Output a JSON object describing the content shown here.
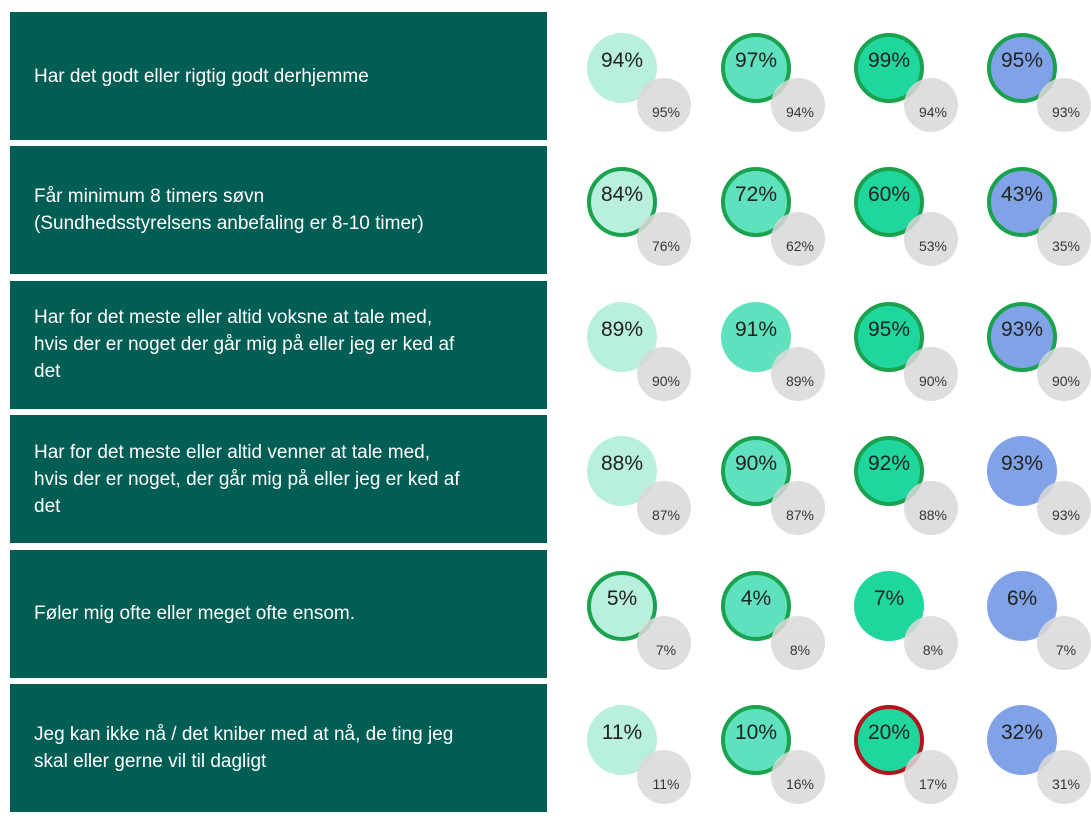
{
  "column_colors": [
    "#b9efdd",
    "#60e1bd",
    "#1fd69f",
    "#80a3e7"
  ],
  "comparison_color": "#d9d9d9",
  "outline_colors": {
    "green": "#1ba24f",
    "red": "#b3151d"
  },
  "panel_color": "#005e55",
  "rows": [
    {
      "lines": [
        "Har det godt eller rigtig godt derhjemme"
      ],
      "cells": [
        {
          "value": "94%",
          "comparison": "95%"
        },
        {
          "value": "97%",
          "comparison": "94%",
          "outline": "green"
        },
        {
          "value": "99%",
          "comparison": "94%",
          "outline": "green"
        },
        {
          "value": "95%",
          "comparison": "93%",
          "outline": "green"
        }
      ]
    },
    {
      "lines": [
        "Får minimum 8 timers søvn",
        "(Sundhedsstyrelsens anbefaling er 8-10 timer)"
      ],
      "cells": [
        {
          "value": "84%",
          "comparison": "76%",
          "outline": "green"
        },
        {
          "value": "72%",
          "comparison": "62%",
          "outline": "green"
        },
        {
          "value": "60%",
          "comparison": "53%",
          "outline": "green"
        },
        {
          "value": "43%",
          "comparison": "35%",
          "outline": "green"
        }
      ]
    },
    {
      "lines": [
        "Har for det meste eller altid voksne at tale med,",
        "hvis der er noget der går mig på eller jeg er ked af",
        "det"
      ],
      "cells": [
        {
          "value": "89%",
          "comparison": "90%"
        },
        {
          "value": "91%",
          "comparison": "89%"
        },
        {
          "value": "95%",
          "comparison": "90%",
          "outline": "green"
        },
        {
          "value": "93%",
          "comparison": "90%",
          "outline": "green"
        }
      ]
    },
    {
      "lines": [
        "Har for det meste eller altid venner at tale med,",
        "hvis der er noget, der går mig på eller jeg er ked af",
        "det"
      ],
      "cells": [
        {
          "value": "88%",
          "comparison": "87%"
        },
        {
          "value": "90%",
          "comparison": "87%",
          "outline": "green"
        },
        {
          "value": "92%",
          "comparison": "88%",
          "outline": "green"
        },
        {
          "value": "93%",
          "comparison": "93%"
        }
      ]
    },
    {
      "lines": [
        "Føler mig ofte eller meget ofte ensom."
      ],
      "cells": [
        {
          "value": "5%",
          "comparison": "7%",
          "outline": "green"
        },
        {
          "value": "4%",
          "comparison": "8%",
          "outline": "green"
        },
        {
          "value": "7%",
          "comparison": "8%"
        },
        {
          "value": "6%",
          "comparison": "7%"
        }
      ]
    },
    {
      "lines": [
        "Jeg kan ikke nå / det kniber med at nå, de ting jeg",
        "skal eller gerne vil til dagligt"
      ],
      "cells": [
        {
          "value": "11%",
          "comparison": "11%"
        },
        {
          "value": "10%",
          "comparison": "16%",
          "outline": "green"
        },
        {
          "value": "20%",
          "comparison": "17%",
          "outline": "red"
        },
        {
          "value": "32%",
          "comparison": "31%"
        }
      ]
    }
  ]
}
